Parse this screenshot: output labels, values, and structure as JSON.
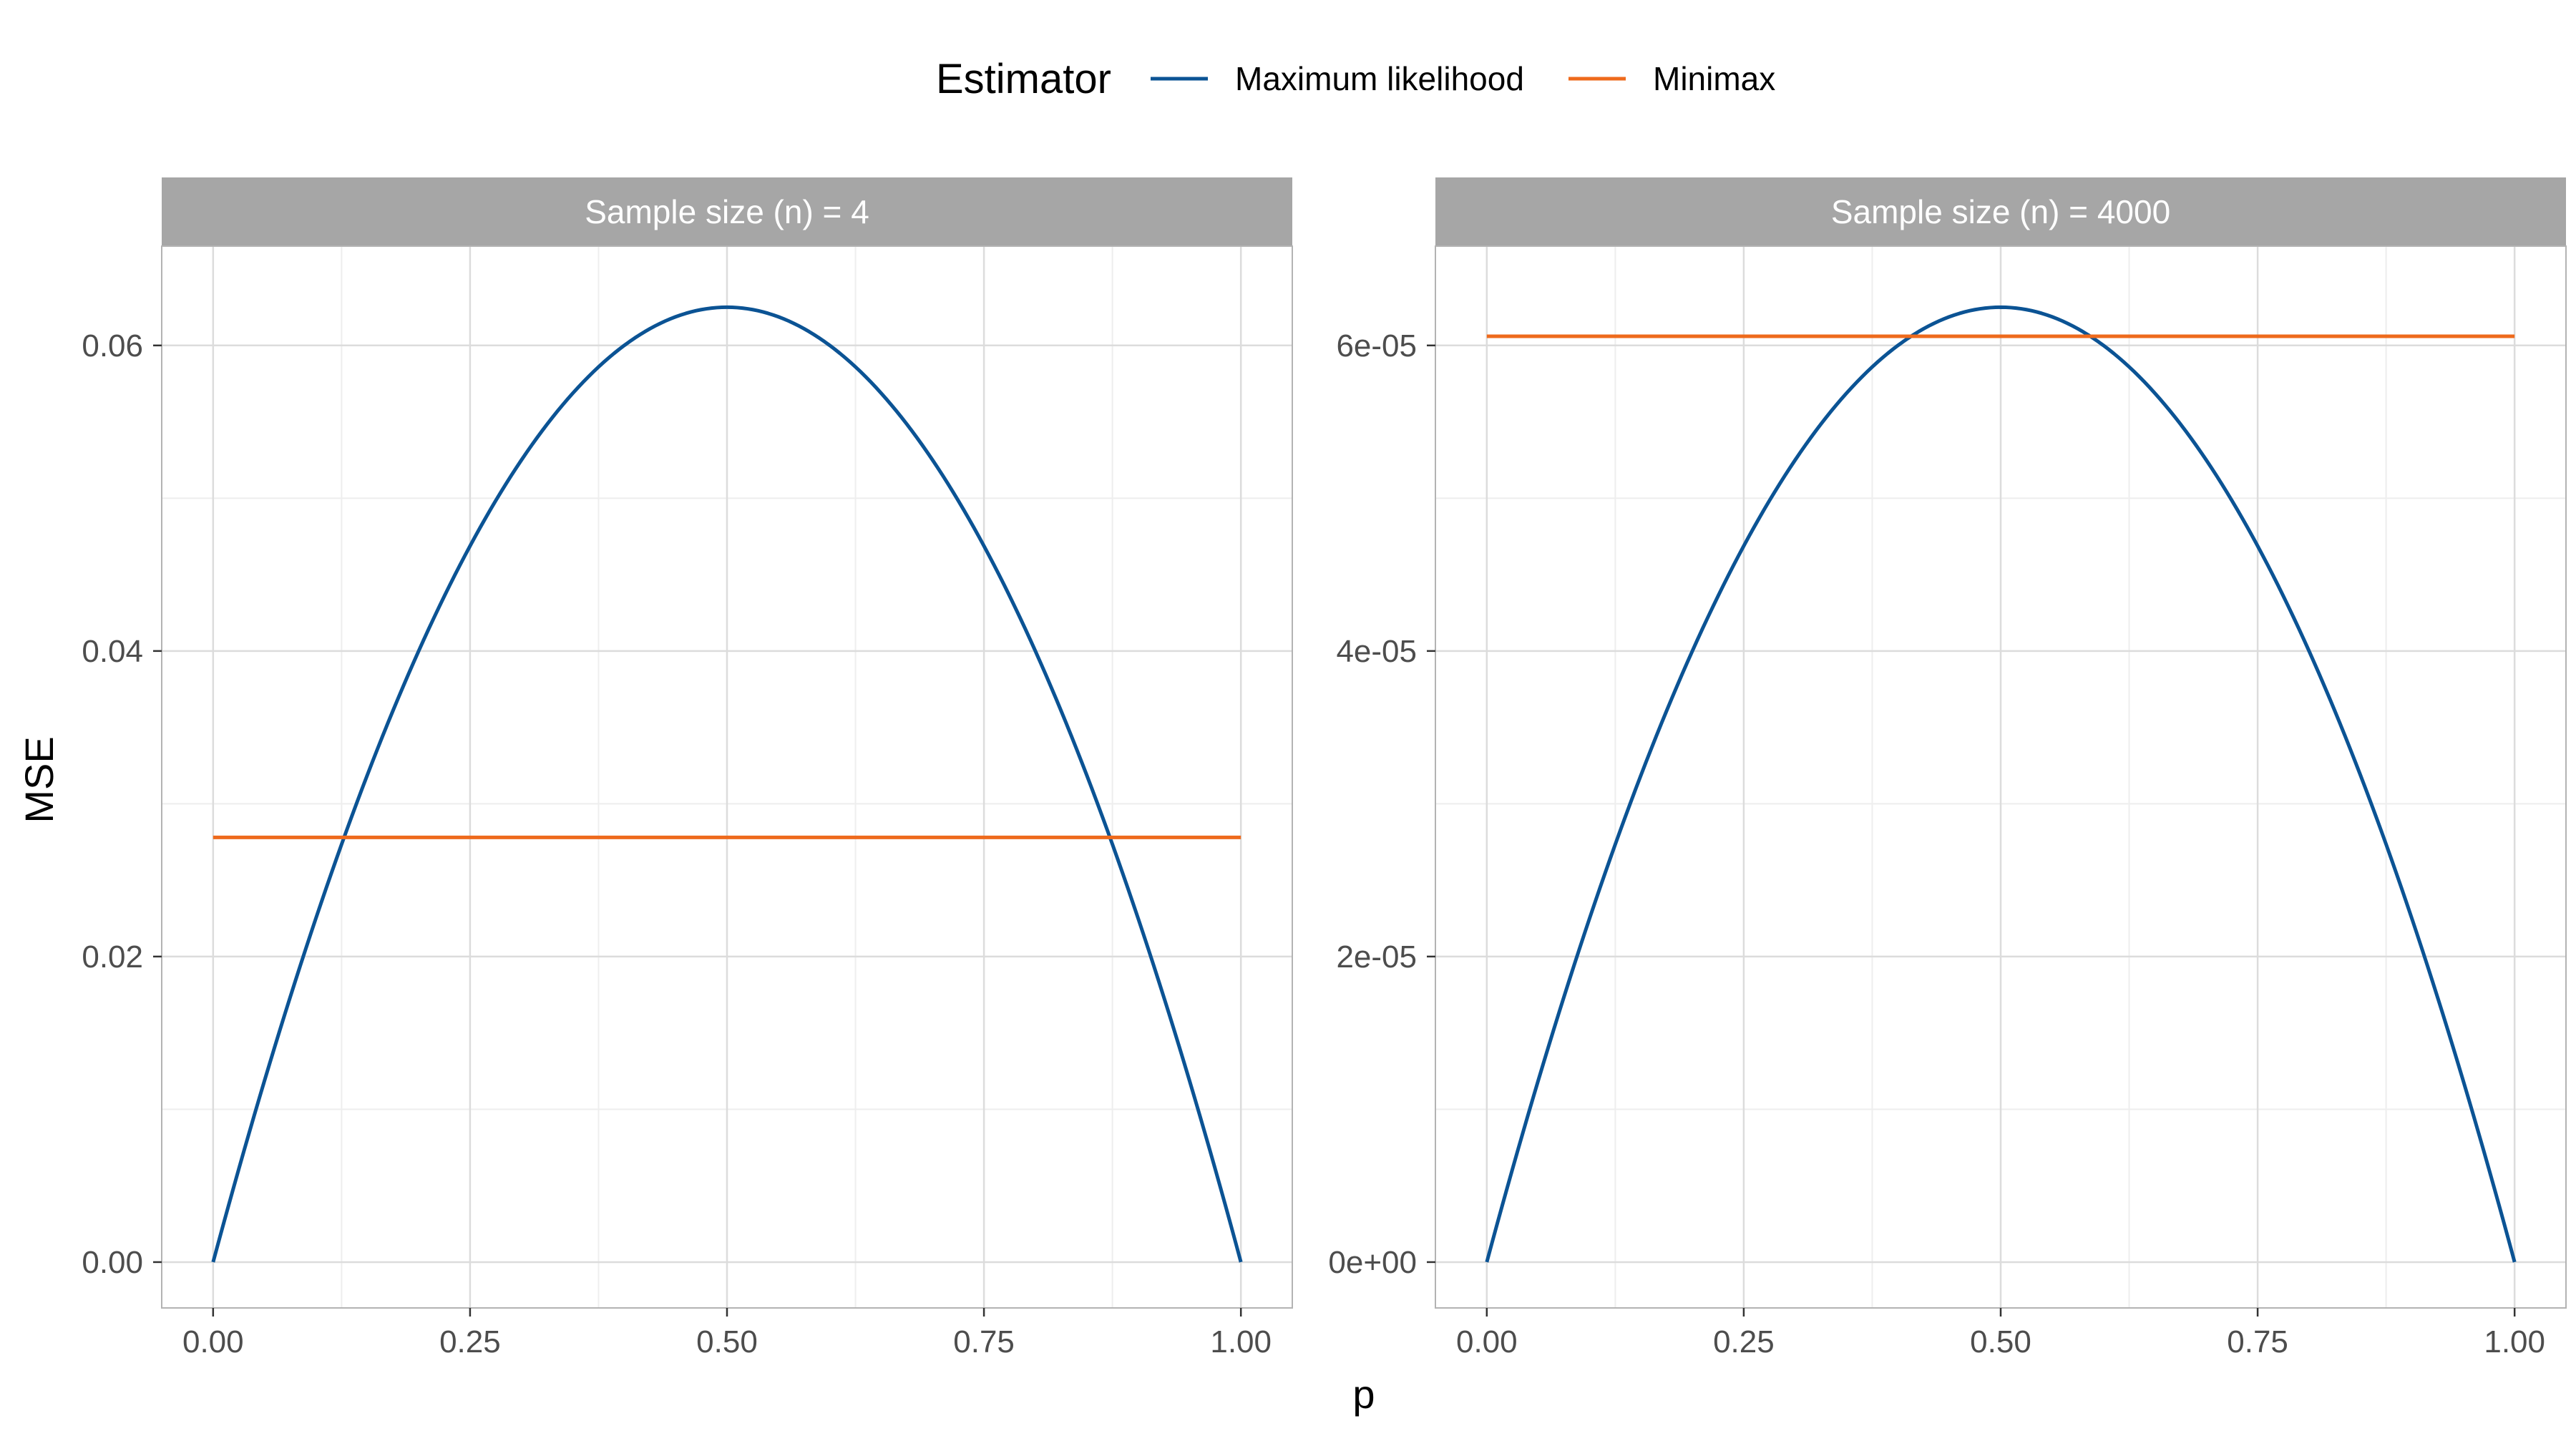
{
  "chart_data": {
    "type": "line",
    "xlabel": "p",
    "ylabel": "MSE",
    "legend": {
      "title": "Estimator",
      "position": "top",
      "entries": [
        {
          "name": "Maximum likelihood",
          "color": "#0b5394"
        },
        {
          "name": "Minimax",
          "color": "#ee6a1c"
        }
      ]
    },
    "grid": true,
    "colors": {
      "strip_background": "#a6a6a6",
      "panel_border": "#b3b3b3",
      "grid_major": "#dcdcdc",
      "grid_minor": "#eeeeee"
    },
    "panels": [
      {
        "strip": "Sample size (n) = 4",
        "n": 4,
        "xlim": [
          -0.05,
          1.05
        ],
        "ylim": [
          -0.003,
          0.0665
        ],
        "x_ticks": [
          0,
          0.25,
          0.5,
          0.75,
          1
        ],
        "x_tick_labels": [
          "0.00",
          "0.25",
          "0.50",
          "0.75",
          "1.00"
        ],
        "y_ticks": [
          0,
          0.02,
          0.04,
          0.06
        ],
        "y_tick_labels": [
          "0.00",
          "0.02",
          "0.04",
          "0.06"
        ],
        "series": [
          {
            "name": "Maximum likelihood",
            "function": "p*(1-p)/n",
            "x_range": [
              0,
              1
            ],
            "peak": [
              0.5,
              0.0625
            ]
          },
          {
            "name": "Minimax",
            "function": "constant",
            "x_range": [
              0,
              1
            ],
            "value": 0.0278
          }
        ]
      },
      {
        "strip": "Sample size (n) = 4000",
        "n": 4000,
        "xlim": [
          -0.05,
          1.05
        ],
        "ylim": [
          -3e-06,
          6.65e-05
        ],
        "x_ticks": [
          0,
          0.25,
          0.5,
          0.75,
          1
        ],
        "x_tick_labels": [
          "0.00",
          "0.25",
          "0.50",
          "0.75",
          "1.00"
        ],
        "y_ticks": [
          0,
          2e-05,
          4e-05,
          6e-05
        ],
        "y_tick_labels": [
          "0e+00",
          "2e-05",
          "4e-05",
          "6e-05"
        ],
        "series": [
          {
            "name": "Maximum likelihood",
            "function": "p*(1-p)/n",
            "x_range": [
              0,
              1
            ],
            "peak": [
              0.5,
              6.25e-05
            ]
          },
          {
            "name": "Minimax",
            "function": "constant",
            "x_range": [
              0,
              1
            ],
            "value": 6.06e-05
          }
        ]
      }
    ]
  }
}
